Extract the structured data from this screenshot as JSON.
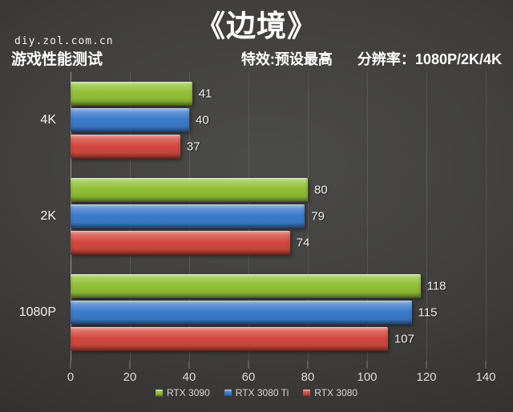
{
  "page": {
    "title": "《边境》",
    "site": "diy.zol.com.cn",
    "subtitle": "游戏性能测试",
    "settings_effect": "特效:预设最高",
    "settings_resolution": "分辨率：1080P/2K/4K"
  },
  "chart_data": {
    "type": "bar",
    "orientation": "horizontal",
    "title": "《边境》",
    "categories": [
      "4K",
      "2K",
      "1080P"
    ],
    "series": [
      {
        "name": "RTX 3090",
        "color": "#92c036",
        "values": [
          41,
          80,
          118
        ]
      },
      {
        "name": "RTX 3080 Ti",
        "color": "#3d7bcc",
        "values": [
          40,
          79,
          115
        ]
      },
      {
        "name": "RTX 3080",
        "color": "#d2493f",
        "values": [
          37,
          74,
          107
        ]
      }
    ],
    "xlabel": "",
    "ylabel": "",
    "xlim": [
      0,
      140
    ],
    "xticks": [
      0,
      20,
      40,
      60,
      80,
      100,
      120,
      140
    ],
    "grid": true,
    "legend_position": "bottom",
    "value_labels": true
  }
}
